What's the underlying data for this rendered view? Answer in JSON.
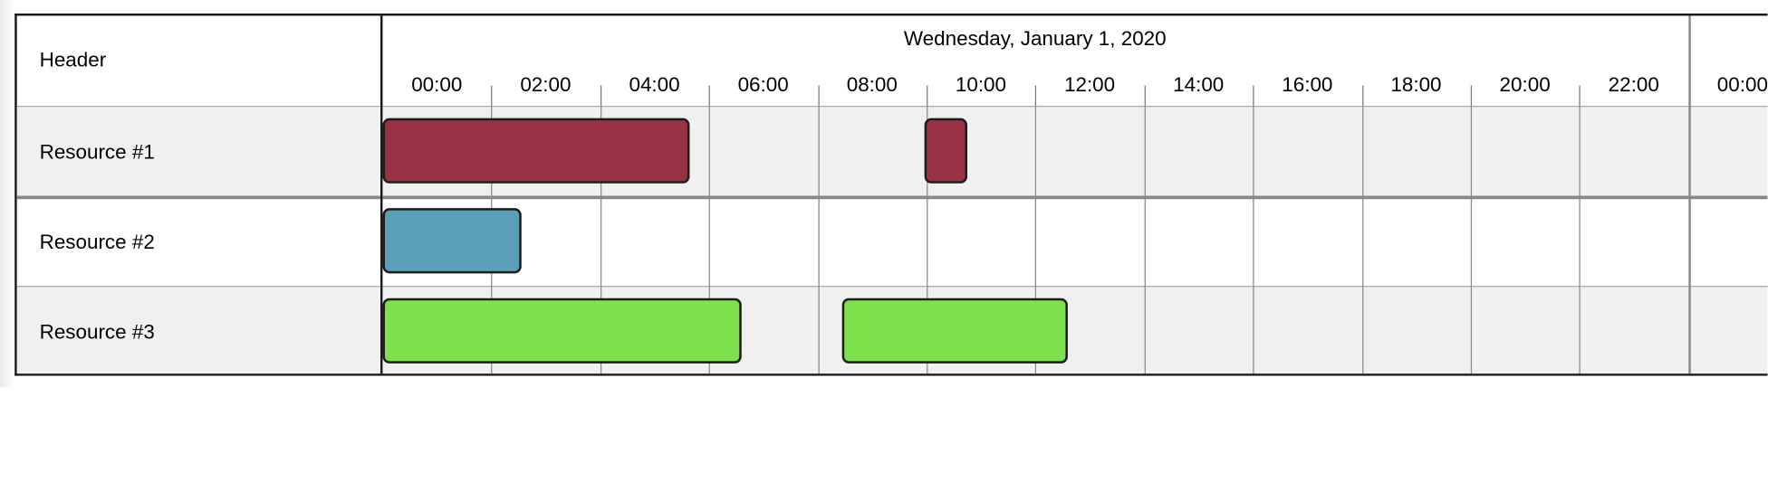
{
  "header_label": "Header",
  "date_label": "Wednesday, January 1, 2020",
  "hours": [
    "00:00",
    "02:00",
    "04:00",
    "06:00",
    "08:00",
    "10:00",
    "12:00",
    "14:00",
    "16:00",
    "18:00",
    "20:00",
    "22:00",
    "00:00"
  ],
  "resources": [
    {
      "name": "Resource #1",
      "bg": "#f0f0f0"
    },
    {
      "name": "Resource #2",
      "bg": "#ffffff"
    },
    {
      "name": "Resource #3",
      "bg": "#f0f0f0"
    }
  ],
  "events": [
    {
      "resource": 0,
      "start_hour": 0.0,
      "end_hour": 5.65,
      "color": "#993344"
    },
    {
      "resource": 0,
      "start_hour": 9.95,
      "end_hour": 10.75,
      "color": "#993344"
    },
    {
      "resource": 1,
      "start_hour": 0.0,
      "end_hour": 2.55,
      "color": "#5aa0b8"
    },
    {
      "resource": 2,
      "start_hour": 0.0,
      "end_hour": 6.6,
      "color": "#7ee04d"
    },
    {
      "resource": 2,
      "start_hour": 8.45,
      "end_hour": 12.6,
      "color": "#7ee04d"
    }
  ]
}
